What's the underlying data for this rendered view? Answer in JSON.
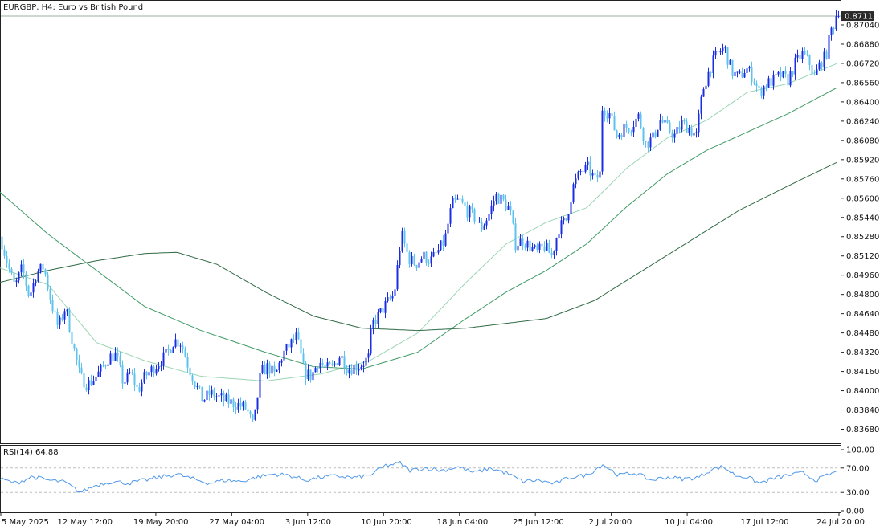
{
  "header": {
    "title": "EURGBP, H4:  Euro vs British Pound",
    "rsi_label": "RSI(14) 64.88"
  },
  "price_axis": {
    "current_price": "0.87113",
    "ticks": [
      "0.87040",
      "0.86880",
      "0.86720",
      "0.86560",
      "0.86400",
      "0.86240",
      "0.86080",
      "0.85920",
      "0.85760",
      "0.85600",
      "0.85440",
      "0.85280",
      "0.85120",
      "0.84960",
      "0.84800",
      "0.84640",
      "0.84480",
      "0.84320",
      "0.84160",
      "0.84000",
      "0.83840",
      "0.83680"
    ]
  },
  "rsi_axis": {
    "ticks": [
      "100.00",
      "70.00",
      "30.00",
      "0.00"
    ]
  },
  "time_axis": {
    "labels": [
      "5 May 2025",
      "12 May 12:00",
      "19 May 20:00",
      "27 May 04:00",
      "3 Jun 12:00",
      "10 Jun 20:00",
      "18 Jun 04:00",
      "25 Jun 12:00",
      "2 Jul 20:00",
      "10 Jul 04:00",
      "17 Jul 12:00",
      "24 Jul 20:00"
    ]
  },
  "colors": {
    "bull": "#1c2fe0",
    "bear": "#5dc2ee",
    "ma_fast": "#9ad5b4",
    "ma_mid": "#3f9a66",
    "ma_slow": "#2f6a45",
    "rsi": "#4f98ea",
    "level_line": "#bdbdbd",
    "frame": "#222222"
  },
  "chart_data": {
    "type": "candlestick",
    "symbol": "EURGBP",
    "timeframe": "H4",
    "ylim": [
      0.8361,
      0.8716
    ],
    "last_price": 0.87113,
    "close_path": [
      [
        0,
        0.8528
      ],
      [
        9,
        0.8505
      ],
      [
        18,
        0.8486
      ],
      [
        27,
        0.8502
      ],
      [
        36,
        0.8478
      ],
      [
        45,
        0.8498
      ],
      [
        54,
        0.8503
      ],
      [
        63,
        0.8474
      ],
      [
        72,
        0.8452
      ],
      [
        81,
        0.847
      ],
      [
        90,
        0.844
      ],
      [
        99,
        0.8412
      ],
      [
        108,
        0.8405
      ],
      [
        117,
        0.841
      ],
      [
        126,
        0.8418
      ],
      [
        135,
        0.8428
      ],
      [
        144,
        0.843
      ],
      [
        153,
        0.8406
      ],
      [
        162,
        0.8415
      ],
      [
        171,
        0.84
      ],
      [
        180,
        0.8412
      ],
      [
        189,
        0.8418
      ],
      [
        198,
        0.8424
      ],
      [
        207,
        0.843
      ],
      [
        216,
        0.8442
      ],
      [
        225,
        0.844
      ],
      [
        234,
        0.842
      ],
      [
        243,
        0.8405
      ],
      [
        252,
        0.8392
      ],
      [
        261,
        0.8398
      ],
      [
        270,
        0.8395
      ],
      [
        279,
        0.8392
      ],
      [
        288,
        0.839
      ],
      [
        297,
        0.8388
      ],
      [
        306,
        0.8385
      ],
      [
        315,
        0.837
      ],
      [
        324,
        0.8415
      ],
      [
        333,
        0.842
      ],
      [
        342,
        0.8412
      ],
      [
        351,
        0.843
      ],
      [
        360,
        0.8438
      ],
      [
        369,
        0.8445
      ],
      [
        378,
        0.8415
      ],
      [
        387,
        0.8412
      ],
      [
        396,
        0.8425
      ],
      [
        405,
        0.8418
      ],
      [
        414,
        0.842
      ],
      [
        423,
        0.843
      ],
      [
        432,
        0.8418
      ],
      [
        441,
        0.842
      ],
      [
        450,
        0.8422
      ],
      [
        459,
        0.8428
      ],
      [
        462,
        0.8455
      ],
      [
        470,
        0.8462
      ],
      [
        480,
        0.8472
      ],
      [
        490,
        0.848
      ],
      [
        499,
        0.853
      ],
      [
        508,
        0.851
      ],
      [
        517,
        0.8505
      ],
      [
        526,
        0.8512
      ],
      [
        535,
        0.8508
      ],
      [
        544,
        0.8515
      ],
      [
        553,
        0.8525
      ],
      [
        562,
        0.8555
      ],
      [
        571,
        0.8558
      ],
      [
        580,
        0.855
      ],
      [
        589,
        0.8545
      ],
      [
        598,
        0.8535
      ],
      [
        607,
        0.8545
      ],
      [
        616,
        0.8562
      ],
      [
        625,
        0.8558
      ],
      [
        634,
        0.855
      ],
      [
        641,
        0.8522
      ],
      [
        650,
        0.8525
      ],
      [
        659,
        0.852
      ],
      [
        668,
        0.8515
      ],
      [
        677,
        0.852
      ],
      [
        686,
        0.8512
      ],
      [
        695,
        0.8535
      ],
      [
        704,
        0.8542
      ],
      [
        713,
        0.857
      ],
      [
        722,
        0.8582
      ],
      [
        731,
        0.8585
      ],
      [
        740,
        0.8575
      ],
      [
        746,
        0.858
      ],
      [
        749,
        0.8635
      ],
      [
        758,
        0.863
      ],
      [
        767,
        0.8612
      ],
      [
        776,
        0.8618
      ],
      [
        785,
        0.862
      ],
      [
        794,
        0.8628
      ],
      [
        803,
        0.8605
      ],
      [
        812,
        0.861
      ],
      [
        821,
        0.8625
      ],
      [
        830,
        0.8618
      ],
      [
        839,
        0.8612
      ],
      [
        848,
        0.8622
      ],
      [
        857,
        0.8618
      ],
      [
        866,
        0.8612
      ],
      [
        874,
        0.865
      ],
      [
        883,
        0.8668
      ],
      [
        892,
        0.868
      ],
      [
        901,
        0.8685
      ],
      [
        910,
        0.8665
      ],
      [
        919,
        0.866
      ],
      [
        928,
        0.8668
      ],
      [
        937,
        0.866
      ],
      [
        944,
        0.8648
      ],
      [
        953,
        0.8655
      ],
      [
        962,
        0.8658
      ],
      [
        971,
        0.8662
      ],
      [
        980,
        0.8658
      ],
      [
        989,
        0.8672
      ],
      [
        998,
        0.868
      ],
      [
        1007,
        0.8672
      ],
      [
        1013,
        0.866
      ],
      [
        1020,
        0.8672
      ],
      [
        1027,
        0.8678
      ],
      [
        1034,
        0.87
      ],
      [
        1042,
        0.87113
      ]
    ],
    "moving_averages": [
      {
        "role": "fast",
        "points": [
          [
            0,
            0.8502
          ],
          [
            60,
            0.8488
          ],
          [
            120,
            0.844
          ],
          [
            180,
            0.8425
          ],
          [
            250,
            0.8412
          ],
          [
            330,
            0.8408
          ],
          [
            400,
            0.8414
          ],
          [
            460,
            0.8425
          ],
          [
            520,
            0.8448
          ],
          [
            580,
            0.849
          ],
          [
            630,
            0.8522
          ],
          [
            680,
            0.854
          ],
          [
            730,
            0.8552
          ],
          [
            780,
            0.8585
          ],
          [
            830,
            0.861
          ],
          [
            880,
            0.8625
          ],
          [
            930,
            0.8648
          ],
          [
            980,
            0.8655
          ],
          [
            1042,
            0.8672
          ]
        ]
      },
      {
        "role": "mid",
        "points": [
          [
            0,
            0.8565
          ],
          [
            60,
            0.853
          ],
          [
            120,
            0.85
          ],
          [
            180,
            0.847
          ],
          [
            250,
            0.845
          ],
          [
            330,
            0.8432
          ],
          [
            390,
            0.842
          ],
          [
            450,
            0.8418
          ],
          [
            520,
            0.8432
          ],
          [
            580,
            0.846
          ],
          [
            630,
            0.8482
          ],
          [
            680,
            0.85
          ],
          [
            730,
            0.8522
          ],
          [
            780,
            0.8553
          ],
          [
            830,
            0.858
          ],
          [
            880,
            0.86
          ],
          [
            930,
            0.8615
          ],
          [
            980,
            0.863
          ],
          [
            1042,
            0.8652
          ]
        ]
      },
      {
        "role": "slow",
        "points": [
          [
            0,
            0.849
          ],
          [
            60,
            0.85
          ],
          [
            120,
            0.8508
          ],
          [
            180,
            0.8514
          ],
          [
            220,
            0.8515
          ],
          [
            270,
            0.8505
          ],
          [
            330,
            0.8482
          ],
          [
            390,
            0.8462
          ],
          [
            450,
            0.8452
          ],
          [
            520,
            0.845
          ],
          [
            580,
            0.8452
          ],
          [
            630,
            0.8456
          ],
          [
            680,
            0.846
          ],
          [
            740,
            0.8475
          ],
          [
            800,
            0.85
          ],
          [
            860,
            0.8525
          ],
          [
            920,
            0.855
          ],
          [
            980,
            0.857
          ],
          [
            1042,
            0.859
          ]
        ]
      }
    ],
    "rsi": {
      "period": 14,
      "value": 64.88,
      "levels": [
        70,
        30
      ],
      "ylim": [
        0,
        100
      ],
      "path": [
        [
          0,
          52
        ],
        [
          20,
          45
        ],
        [
          40,
          56
        ],
        [
          60,
          50
        ],
        [
          80,
          47
        ],
        [
          100,
          30
        ],
        [
          120,
          42
        ],
        [
          140,
          48
        ],
        [
          160,
          45
        ],
        [
          180,
          50
        ],
        [
          200,
          55
        ],
        [
          220,
          60
        ],
        [
          240,
          52
        ],
        [
          260,
          45
        ],
        [
          280,
          50
        ],
        [
          300,
          48
        ],
        [
          320,
          55
        ],
        [
          340,
          60
        ],
        [
          360,
          58
        ],
        [
          380,
          50
        ],
        [
          400,
          55
        ],
        [
          420,
          57
        ],
        [
          440,
          54
        ],
        [
          460,
          58
        ],
        [
          480,
          74
        ],
        [
          498,
          78
        ],
        [
          510,
          66
        ],
        [
          530,
          70
        ],
        [
          550,
          66
        ],
        [
          570,
          72
        ],
        [
          590,
          62
        ],
        [
          610,
          70
        ],
        [
          630,
          62
        ],
        [
          650,
          48
        ],
        [
          670,
          50
        ],
        [
          690,
          44
        ],
        [
          710,
          55
        ],
        [
          730,
          58
        ],
        [
          750,
          76
        ],
        [
          770,
          58
        ],
        [
          790,
          62
        ],
        [
          810,
          50
        ],
        [
          830,
          55
        ],
        [
          850,
          52
        ],
        [
          870,
          55
        ],
        [
          885,
          68
        ],
        [
          900,
          72
        ],
        [
          915,
          58
        ],
        [
          930,
          55
        ],
        [
          945,
          45
        ],
        [
          960,
          52
        ],
        [
          980,
          58
        ],
        [
          1000,
          62
        ],
        [
          1015,
          50
        ],
        [
          1030,
          58
        ],
        [
          1042,
          64.88
        ]
      ]
    }
  }
}
